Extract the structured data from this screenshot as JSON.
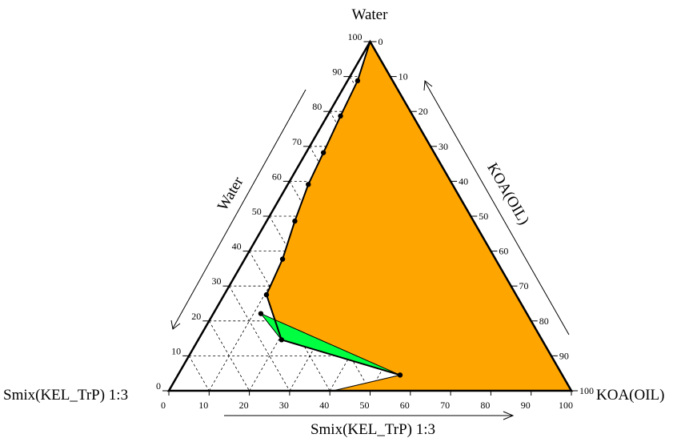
{
  "chart_data": {
    "type": "ternary",
    "apex_labels": {
      "top": "Water",
      "left": "Smix(KEL_TrP) 1:3",
      "right": "KOA(OIL)"
    },
    "axis_labels": {
      "left_side": "Water",
      "right_side": "KOA(OIL)",
      "bottom": "Smix(KEL_TrP) 1:3"
    },
    "ticks": [
      "0",
      "10",
      "20",
      "30",
      "40",
      "50",
      "60",
      "70",
      "80",
      "90",
      "100"
    ],
    "grid": "dashed, step 10",
    "colors": {
      "region_orange": "#FFA500",
      "region_green": "#00FF40",
      "boundary": "#000000"
    },
    "boundary_points": [
      {
        "water": 100,
        "koa": 0
      },
      {
        "water": 88.8,
        "koa": 2.5
      },
      {
        "water": 78.7,
        "koa": 3.3
      },
      {
        "water": 68.2,
        "koa": 4.3
      },
      {
        "water": 59.1,
        "koa": 5.1
      },
      {
        "water": 48.6,
        "koa": 7.0
      },
      {
        "water": 37.7,
        "koa": 9.4
      },
      {
        "water": 27.5,
        "koa": 10.5
      },
      {
        "water": 14.6,
        "koa": 20.7
      },
      {
        "water": 4.5,
        "koa": 55.2
      }
    ],
    "orange_region": [
      {
        "water": 100,
        "koa": 0
      },
      {
        "water": 0,
        "koa": 100
      },
      {
        "water": 0,
        "koa": 40.8
      },
      {
        "water": 4.5,
        "koa": 55.2
      },
      {
        "water": 14.6,
        "koa": 20.7
      },
      {
        "water": 27.5,
        "koa": 10.5
      },
      {
        "water": 37.7,
        "koa": 9.4
      },
      {
        "water": 48.6,
        "koa": 7.0
      },
      {
        "water": 59.1,
        "koa": 5.1
      },
      {
        "water": 68.2,
        "koa": 4.3
      },
      {
        "water": 78.7,
        "koa": 3.3
      },
      {
        "water": 88.8,
        "koa": 2.5
      }
    ],
    "green_region": [
      {
        "water": 4.5,
        "koa": 55.2
      },
      {
        "water": 22.1,
        "koa": 11.8
      },
      {
        "water": 14.6,
        "koa": 20.7
      }
    ]
  }
}
